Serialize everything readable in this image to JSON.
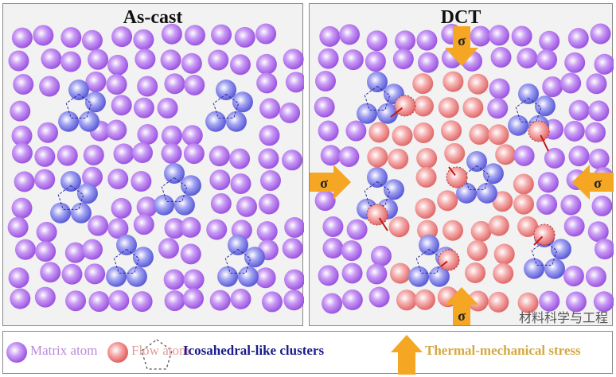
{
  "panels": [
    {
      "title": "As-cast"
    },
    {
      "title": "DCT"
    }
  ],
  "stress_symbol": "σ",
  "legend": {
    "matrix_atom": "Matrix atom",
    "flow_atom": "Flow atom",
    "clusters": "Icosahedral-like clusters",
    "stress": "Thermal-mechanical stress"
  },
  "watermark": "材料科学与工程",
  "colors": {
    "matrix": "#b77ef0",
    "cluster": "#7b7be8",
    "flow": "#f08a8a",
    "arrow": "#f5a623",
    "matrix_text": "#b98ad9",
    "flow_text": "#e49a9a",
    "cluster_text": "#1a1a8c",
    "stress_text": "#d4a840"
  }
}
